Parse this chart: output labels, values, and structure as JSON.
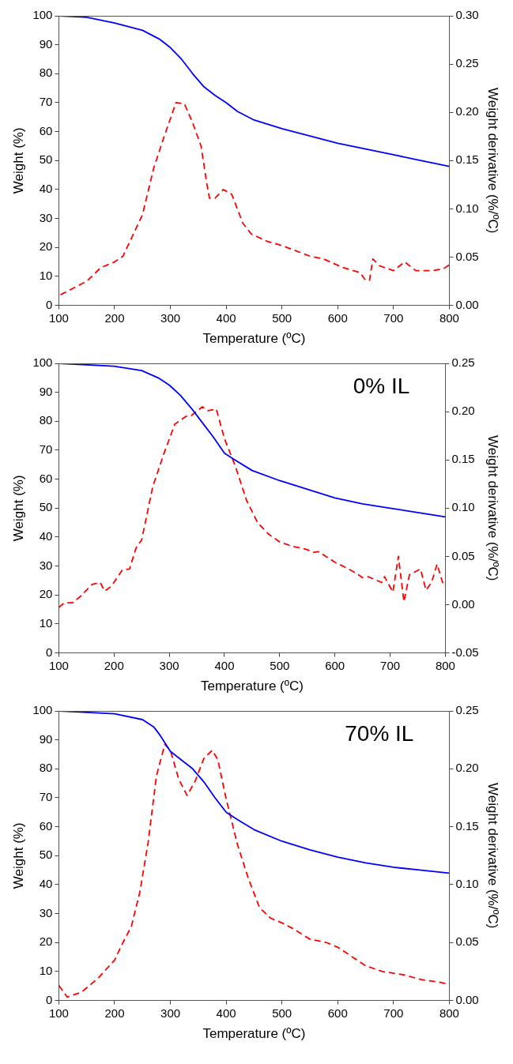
{
  "chart_data": [
    {
      "type": "line",
      "xlabel": "Temperature (ºC)",
      "ylabel": "Weight (%)",
      "y2label": "Weight derivative (%/ºC)",
      "xlim": [
        100,
        800
      ],
      "xticks": [
        100,
        200,
        300,
        400,
        500,
        600,
        700,
        800
      ],
      "ylim": [
        0,
        100
      ],
      "yticks": [
        0,
        10,
        20,
        30,
        40,
        50,
        60,
        70,
        80,
        90,
        100
      ],
      "y2lim": [
        0,
        0.3
      ],
      "y2ticks": [
        {
          "value": 0,
          "label": "0.00"
        },
        {
          "value": 0.05,
          "label": "0.05"
        },
        {
          "value": 0.1,
          "label": "0.10"
        },
        {
          "value": 0.15,
          "label": "0.15"
        },
        {
          "value": 0.2,
          "label": "0.20"
        },
        {
          "value": 0.25,
          "label": "0.25"
        },
        {
          "value": 0.3,
          "label": "0.30"
        }
      ],
      "grid": false,
      "legend": false,
      "marker": "none",
      "series": [
        {
          "color": "#0000ff",
          "line_style": "solid",
          "x": [
            100,
            150,
            200,
            250,
            280,
            300,
            320,
            340,
            360,
            380,
            400,
            420,
            450,
            500,
            550,
            600,
            650,
            700,
            750,
            800
          ],
          "values": [
            100,
            99.5,
            97.5,
            95,
            92,
            89,
            85,
            80,
            75.5,
            72.5,
            70,
            67,
            64,
            61,
            58.5,
            56,
            54,
            52,
            50,
            48
          ]
        },
        {
          "color": "#ff0000",
          "line_style": "dashed",
          "axis": "y2",
          "x": [
            103,
            150,
            175,
            200,
            215,
            250,
            270,
            290,
            310,
            325,
            340,
            355,
            365,
            370,
            380,
            395,
            410,
            430,
            445,
            475,
            500,
            550,
            575,
            610,
            640,
            650,
            657,
            663,
            675,
            700,
            720,
            740,
            770,
            790,
            800
          ],
          "values": [
            0.011,
            0.025,
            0.039,
            0.045,
            0.051,
            0.094,
            0.142,
            0.177,
            0.21,
            0.209,
            0.189,
            0.165,
            0.127,
            0.111,
            0.111,
            0.12,
            0.115,
            0.085,
            0.074,
            0.066,
            0.062,
            0.051,
            0.048,
            0.039,
            0.034,
            0.026,
            0.026,
            0.048,
            0.041,
            0.036,
            0.045,
            0.036,
            0.036,
            0.038,
            0.042
          ]
        }
      ]
    },
    {
      "type": "line",
      "title": "0% IL",
      "xlabel": "Temperature (ºC)",
      "ylabel": "Weight (%)",
      "y2label": "Weight derivative (%/ºC)",
      "xlim": [
        100,
        800
      ],
      "xticks": [
        100,
        200,
        300,
        400,
        500,
        600,
        700,
        800
      ],
      "ylim": [
        0,
        100
      ],
      "yticks": [
        0,
        10,
        20,
        30,
        40,
        50,
        60,
        70,
        80,
        90,
        100
      ],
      "y2lim": [
        -0.05,
        0.25
      ],
      "y2ticks": [
        {
          "value": -0.05,
          "label": "-0.05"
        },
        {
          "value": 0,
          "label": "0.00"
        },
        {
          "value": 0.05,
          "label": "0.05"
        },
        {
          "value": 0.1,
          "label": "0.10"
        },
        {
          "value": 0.15,
          "label": "0.15"
        },
        {
          "value": 0.2,
          "label": "0.20"
        },
        {
          "value": 0.25,
          "label": "0.25"
        }
      ],
      "grid": false,
      "legend": false,
      "marker": "none",
      "series": [
        {
          "color": "#0000ff",
          "line_style": "solid",
          "x": [
            100,
            200,
            250,
            280,
            300,
            320,
            340,
            360,
            380,
            400,
            420,
            450,
            500,
            550,
            600,
            650,
            700,
            750,
            800
          ],
          "values": [
            100,
            99,
            97.5,
            95,
            92.5,
            89,
            84.5,
            79.5,
            74.5,
            69,
            66.5,
            63,
            59.5,
            56.5,
            53.5,
            51.5,
            50,
            48.5,
            47
          ]
        },
        {
          "color": "#ff0000",
          "line_style": "dashed",
          "axis": "y2",
          "x": [
            100,
            110,
            125,
            140,
            160,
            175,
            183,
            195,
            215,
            228,
            240,
            250,
            270,
            290,
            310,
            330,
            340,
            360,
            370,
            380,
            385,
            400,
            420,
            440,
            460,
            480,
            500,
            520,
            550,
            560,
            570,
            600,
            625,
            640,
            650,
            660,
            685,
            690,
            705,
            715,
            725,
            735,
            755,
            765,
            775,
            785,
            795,
            800
          ],
          "values": [
            -0.003,
            0.002,
            0.002,
            0.009,
            0.021,
            0.023,
            0.014,
            0.019,
            0.036,
            0.037,
            0.059,
            0.067,
            0.122,
            0.156,
            0.187,
            0.195,
            0.196,
            0.205,
            0.201,
            0.202,
            0.203,
            0.172,
            0.143,
            0.108,
            0.085,
            0.073,
            0.065,
            0.061,
            0.057,
            0.054,
            0.055,
            0.044,
            0.037,
            0.032,
            0.028,
            0.029,
            0.023,
            0.029,
            0.013,
            0.05,
            0.003,
            0.031,
            0.037,
            0.015,
            0.023,
            0.042,
            0.023,
            0.023
          ]
        }
      ]
    },
    {
      "type": "line",
      "title": "70% IL",
      "xlabel": "Temperature (ºC)",
      "ylabel": "Weight (%)",
      "y2label": "Weight derivative (%/ºC)",
      "xlim": [
        100,
        800
      ],
      "xticks": [
        100,
        200,
        300,
        400,
        500,
        600,
        700,
        800
      ],
      "ylim": [
        0,
        100
      ],
      "yticks": [
        0,
        10,
        20,
        30,
        40,
        50,
        60,
        70,
        80,
        90,
        100
      ],
      "y2lim": [
        0,
        0.25
      ],
      "y2ticks": [
        {
          "value": 0,
          "label": "0.00"
        },
        {
          "value": 0.05,
          "label": "0.05"
        },
        {
          "value": 0.1,
          "label": "0.10"
        },
        {
          "value": 0.15,
          "label": "0.15"
        },
        {
          "value": 0.2,
          "label": "0.20"
        },
        {
          "value": 0.25,
          "label": "0.25"
        }
      ],
      "grid": false,
      "legend": false,
      "marker": "none",
      "series": [
        {
          "color": "#0000ff",
          "line_style": "solid",
          "x": [
            100,
            200,
            250,
            270,
            280,
            290,
            300,
            320,
            340,
            360,
            380,
            400,
            420,
            450,
            500,
            550,
            600,
            650,
            700,
            750,
            800
          ],
          "values": [
            100,
            99,
            97,
            94.5,
            92,
            89,
            86,
            83,
            80,
            75.5,
            70,
            65,
            62.5,
            59,
            55,
            52,
            49.5,
            47.5,
            46,
            45,
            44
          ]
        },
        {
          "color": "#ff0000",
          "line_style": "dashed",
          "axis": "y2",
          "x": [
            100,
            115,
            140,
            170,
            200,
            215,
            230,
            245,
            260,
            275,
            290,
            300,
            315,
            330,
            345,
            360,
            375,
            385,
            400,
            420,
            440,
            460,
            480,
            500,
            520,
            550,
            580,
            600,
            625,
            650,
            680,
            720,
            750,
            780,
            800
          ],
          "values": [
            0.013,
            0.003,
            0.007,
            0.019,
            0.035,
            0.05,
            0.064,
            0.093,
            0.136,
            0.194,
            0.221,
            0.216,
            0.191,
            0.177,
            0.19,
            0.209,
            0.216,
            0.208,
            0.174,
            0.135,
            0.105,
            0.08,
            0.071,
            0.067,
            0.062,
            0.053,
            0.05,
            0.046,
            0.038,
            0.03,
            0.025,
            0.022,
            0.018,
            0.016,
            0.014
          ]
        }
      ]
    }
  ]
}
